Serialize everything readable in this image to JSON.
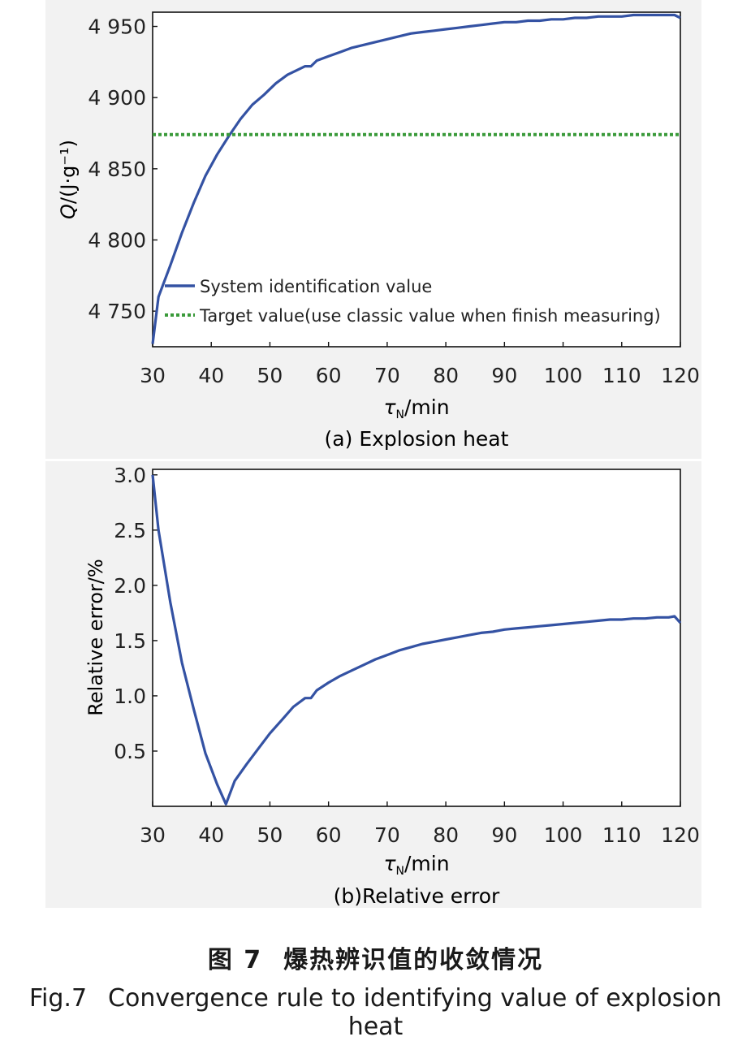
{
  "chart_data": [
    {
      "type": "line",
      "subtitle": "(a) Explosion heat",
      "xlabel": "τ_N/min",
      "ylabel": "Q/(J·g⁻¹)",
      "xlim": [
        30,
        120
      ],
      "ylim": [
        4725,
        4960
      ],
      "xticks": [
        30,
        40,
        50,
        60,
        70,
        80,
        90,
        100,
        110,
        120
      ],
      "yticks": [
        4750,
        4800,
        4850,
        4900,
        4950
      ],
      "ytick_labels": [
        "4 750",
        "4 800",
        "4 850",
        "4 900",
        "4 950"
      ],
      "legend_position": "bottom-left",
      "grid": false,
      "series": [
        {
          "name": "System identification value",
          "style": "solid",
          "color": "#3452a3",
          "x": [
            30,
            31,
            33,
            35,
            37,
            39,
            41,
            43,
            45,
            47,
            49,
            51,
            53,
            55,
            56,
            57,
            58,
            60,
            62,
            64,
            66,
            68,
            70,
            72,
            74,
            76,
            78,
            80,
            82,
            84,
            86,
            88,
            90,
            92,
            94,
            96,
            98,
            100,
            102,
            104,
            106,
            108,
            110,
            112,
            114,
            116,
            118,
            119,
            120
          ],
          "y": [
            4727,
            4760,
            4782,
            4805,
            4826,
            4845,
            4860,
            4873,
            4885,
            4895,
            4902,
            4910,
            4916,
            4920,
            4922,
            4922,
            4926,
            4929,
            4932,
            4935,
            4937,
            4939,
            4941,
            4943,
            4945,
            4946,
            4947,
            4948,
            4949,
            4950,
            4951,
            4952,
            4953,
            4953,
            4954,
            4954,
            4955,
            4955,
            4956,
            4956,
            4957,
            4957,
            4957,
            4958,
            4958,
            4958,
            4958,
            4958,
            4956
          ]
        },
        {
          "name": "Target value(use classic value when finish measuring)",
          "style": "dotted",
          "color": "#3a9a3a",
          "x": [
            30,
            120
          ],
          "y": [
            4874,
            4874
          ]
        }
      ]
    },
    {
      "type": "line",
      "subtitle": "(b)Relative error",
      "xlabel": "τ_N/min",
      "ylabel": "Relative error/%",
      "xlim": [
        30,
        120
      ],
      "ylim": [
        0,
        3.05
      ],
      "xticks": [
        30,
        40,
        50,
        60,
        70,
        80,
        90,
        100,
        110,
        120
      ],
      "yticks": [
        0.5,
        1.0,
        1.5,
        2.0,
        2.5,
        3.0
      ],
      "ytick_labels": [
        "0.5",
        "1.0",
        "1.5",
        "2.0",
        "2.5",
        "3.0"
      ],
      "grid": false,
      "series": [
        {
          "color": "#3452a3",
          "x": [
            30,
            31,
            33,
            35,
            37,
            39,
            41,
            42.5,
            44,
            46,
            48,
            50,
            52,
            54,
            56,
            57,
            58,
            60,
            62,
            64,
            66,
            68,
            70,
            72,
            74,
            76,
            78,
            80,
            82,
            84,
            86,
            88,
            90,
            92,
            94,
            96,
            98,
            100,
            102,
            104,
            106,
            108,
            110,
            112,
            114,
            116,
            118,
            119,
            120
          ],
          "y": [
            3.0,
            2.5,
            1.85,
            1.3,
            0.88,
            0.48,
            0.2,
            0.02,
            0.23,
            0.38,
            0.52,
            0.66,
            0.78,
            0.9,
            0.98,
            0.98,
            1.05,
            1.12,
            1.18,
            1.23,
            1.28,
            1.33,
            1.37,
            1.41,
            1.44,
            1.47,
            1.49,
            1.51,
            1.53,
            1.55,
            1.57,
            1.58,
            1.6,
            1.61,
            1.62,
            1.63,
            1.64,
            1.65,
            1.66,
            1.67,
            1.68,
            1.69,
            1.69,
            1.7,
            1.7,
            1.71,
            1.71,
            1.72,
            1.66
          ]
        }
      ]
    }
  ],
  "caption_cn": {
    "num": "图 7",
    "text": "爆热辨识值的收敛情况"
  },
  "caption_en": {
    "num": "Fig.7",
    "text": "Convergence rule to identifying value of explosion heat"
  },
  "colors": {
    "series": "#3452a3",
    "target": "#3a9a3a",
    "panel_bg": "#f2f2f2"
  }
}
